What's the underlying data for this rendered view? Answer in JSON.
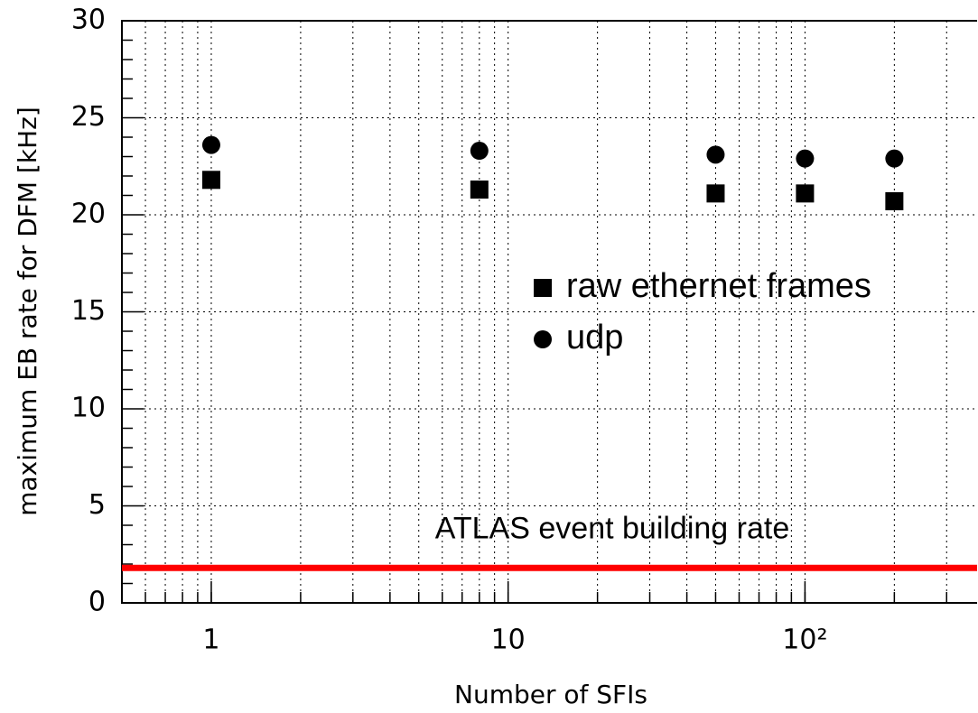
{
  "chart_data": {
    "type": "scatter",
    "xlabel": "Number of SFIs",
    "ylabel": "maximum EB rate for DFM [kHz]",
    "xlog": true,
    "xlim": [
      0.5,
      380
    ],
    "ylim": [
      0,
      30
    ],
    "xticks": [
      1,
      10,
      {
        "value": 100,
        "label": "10²"
      }
    ],
    "yticks": [
      0,
      5,
      10,
      15,
      20,
      25,
      30
    ],
    "xgrid": [
      0.6,
      0.7,
      0.8,
      0.9,
      1,
      2,
      3,
      4,
      5,
      6,
      7,
      8,
      9,
      10,
      20,
      30,
      40,
      50,
      60,
      70,
      80,
      90,
      100,
      200,
      300
    ],
    "yminorticks": [
      1,
      2,
      3,
      4,
      6,
      7,
      8,
      9,
      11,
      12,
      13,
      14,
      16,
      17,
      18,
      19,
      21,
      22,
      23,
      24,
      26,
      27,
      28,
      29
    ],
    "grid": true,
    "series": [
      {
        "name": "raw ethernet frames",
        "color": "#000000",
        "marker": "square",
        "x": [
          1,
          8,
          50,
          100,
          200
        ],
        "values": [
          21.8,
          21.3,
          21.1,
          21.1,
          20.7
        ]
      },
      {
        "name": "udp",
        "color": "#000000",
        "marker": "circle",
        "x": [
          1,
          8,
          50,
          100,
          200
        ],
        "values": [
          23.6,
          23.3,
          23.1,
          22.9,
          22.9
        ]
      }
    ],
    "hline": {
      "value": 1.8,
      "label": "ATLAS event building rate",
      "color": "#ff0000"
    }
  }
}
